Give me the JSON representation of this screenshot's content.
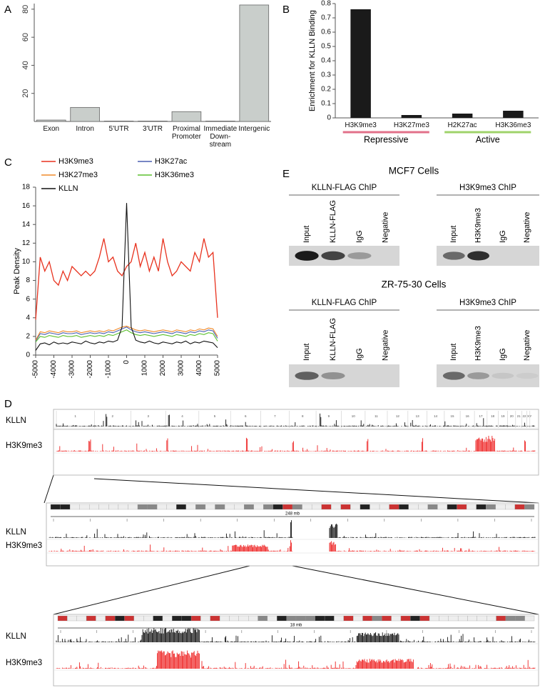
{
  "panel_labels": [
    "A",
    "B",
    "C",
    "D",
    "E"
  ],
  "chart_data": [
    {
      "type": "bar",
      "categories": [
        "Exon",
        "Intron",
        "5'UTR",
        "3'UTR",
        "Proximal Promoter",
        "Immediate Down-stream",
        "Intergenic"
      ],
      "values": [
        1,
        10,
        0.3,
        0.3,
        7,
        0.3,
        83
      ],
      "color": "#c9cecb",
      "ylim": [
        0,
        84
      ],
      "yticks": [
        20,
        40,
        60,
        80
      ]
    },
    {
      "type": "bar",
      "y_label": "Enrichment for KLLN Binding",
      "categories": [
        "H3K9me3",
        "H3K27me3",
        "H2K27ac",
        "H3K36me3"
      ],
      "values": [
        0.76,
        0.02,
        0.03,
        0.05
      ],
      "color": "#1a1a1a",
      "ylim": [
        0,
        0.8
      ],
      "yticks": [
        0,
        0.1,
        0.2,
        0.3,
        0.4,
        0.5,
        0.6,
        0.7,
        0.8
      ],
      "groups": [
        {
          "label": "Repressive",
          "color": "#e2708a"
        },
        {
          "label": "Active",
          "color": "#9fd36a"
        }
      ]
    },
    {
      "type": "line",
      "y_label": "Peak Density",
      "x": [
        -5000,
        -4750,
        -4500,
        -4250,
        -4000,
        -3750,
        -3500,
        -3250,
        -3000,
        -2750,
        -2500,
        -2250,
        -2000,
        -1750,
        -1500,
        -1250,
        -1000,
        -750,
        -500,
        -250,
        0,
        250,
        500,
        750,
        1000,
        1250,
        1500,
        1750,
        2000,
        2250,
        2500,
        2750,
        3000,
        3250,
        3500,
        3750,
        4000,
        4250,
        4500,
        4750,
        5000
      ],
      "xlim": [
        -5000,
        5000
      ],
      "xticks": [
        -5000,
        -4000,
        -3000,
        -2000,
        -1000,
        0,
        1000,
        2000,
        3000,
        4000,
        5000
      ],
      "ylim": [
        0,
        18
      ],
      "yticks": [
        0,
        2,
        4,
        6,
        8,
        10,
        12,
        14,
        16,
        18
      ],
      "series": [
        {
          "name": "H3K9me3",
          "color": "#e8321e",
          "values": [
            3.8,
            10.5,
            9,
            10,
            8,
            7.5,
            9,
            8,
            9.5,
            9,
            8.5,
            9,
            8.5,
            9,
            10.5,
            12.5,
            10,
            10.5,
            9,
            8.5,
            9.5,
            10,
            12,
            9.5,
            11,
            9,
            10.5,
            9,
            12.5,
            10,
            8.5,
            9,
            10,
            9.5,
            9,
            11,
            10,
            12.5,
            10.5,
            11,
            4
          ]
        },
        {
          "name": "H3K27ac",
          "color": "#4a5fb0",
          "values": [
            1.5,
            2.3,
            2.2,
            2.4,
            2.3,
            2.2,
            2.4,
            2.3,
            2.3,
            2.4,
            2.2,
            2.3,
            2.4,
            2.3,
            2.4,
            2.3,
            2.5,
            2.4,
            2.6,
            2.8,
            3,
            2.7,
            2.5,
            2.4,
            2.5,
            2.4,
            2.3,
            2.4,
            2.5,
            2.4,
            2.3,
            2.5,
            2.4,
            2.3,
            2.5,
            2.4,
            2.6,
            2.5,
            2.7,
            2.6,
            1.8
          ]
        },
        {
          "name": "H3K27me3",
          "color": "#f08a2a",
          "values": [
            1.6,
            2.5,
            2.4,
            2.6,
            2.5,
            2.4,
            2.6,
            2.5,
            2.5,
            2.6,
            2.4,
            2.5,
            2.6,
            2.5,
            2.6,
            2.5,
            2.7,
            2.6,
            2.8,
            3,
            3.1,
            2.9,
            2.7,
            2.6,
            2.7,
            2.6,
            2.5,
            2.6,
            2.7,
            2.6,
            2.5,
            2.7,
            2.6,
            2.5,
            2.7,
            2.6,
            2.8,
            2.7,
            2.9,
            2.8,
            2
          ]
        },
        {
          "name": "H3K36me3",
          "color": "#5cc02e",
          "values": [
            1.4,
            2,
            1.9,
            2.1,
            2,
            1.9,
            2.1,
            2,
            2,
            2.1,
            1.9,
            2,
            2.1,
            2,
            2.1,
            2,
            2.2,
            2.1,
            2.3,
            2.5,
            2.7,
            2.4,
            2.2,
            2.1,
            2.2,
            2.1,
            2,
            2.1,
            2.2,
            2.1,
            2,
            2.2,
            2.1,
            2,
            2.2,
            2.1,
            2.3,
            2.2,
            2.4,
            2.3,
            1.5
          ]
        },
        {
          "name": "KLLN",
          "color": "#111111",
          "values": [
            0.5,
            1.2,
            1.3,
            1.1,
            1.4,
            1.2,
            1.3,
            1.2,
            1.4,
            1.3,
            1.2,
            1.5,
            1.3,
            1.2,
            1.4,
            1.3,
            1.5,
            1.4,
            1.6,
            3,
            16.3,
            3,
            1.6,
            1.4,
            1.3,
            1.5,
            1.3,
            1.2,
            1.4,
            1.3,
            1.2,
            1.4,
            1.3,
            1.5,
            1.2,
            1.4,
            1.3,
            1.5,
            1.4,
            1.3,
            0.8
          ]
        }
      ]
    }
  ],
  "gels": [
    {
      "cell_line": "MCF7 Cells",
      "panels": [
        {
          "title": "KLLN-FLAG ChIP",
          "lanes": [
            "Input",
            "KLLN-FLAG",
            "IgG",
            "Negative"
          ]
        },
        {
          "title": "H3K9me3 ChIP",
          "lanes": [
            "Input",
            "H3K9me3",
            "IgG",
            "Negative"
          ]
        }
      ]
    },
    {
      "cell_line": "ZR-75-30 Cells",
      "panels": [
        {
          "title": "KLLN-FLAG ChIP",
          "lanes": [
            "Input",
            "KLLN-FLAG",
            "IgG",
            "Negative"
          ]
        },
        {
          "title": "H3K9me3 ChIP",
          "lanes": [
            "Input",
            "H3K9me3",
            "IgG",
            "Negative"
          ]
        }
      ]
    }
  ],
  "browser": {
    "chromosomes": [
      "1",
      "2",
      "3",
      "4",
      "5",
      "6",
      "7",
      "8",
      "9",
      "10",
      "11",
      "12",
      "13",
      "14",
      "15",
      "16",
      "17",
      "18",
      "19",
      "20",
      "21",
      "22",
      "X",
      "Y"
    ],
    "views": [
      {
        "tracks": [
          "KLLN",
          "H3K9me3"
        ]
      },
      {
        "scale": "248 mb",
        "tracks": [
          "KLLN",
          "H3K9me3"
        ]
      },
      {
        "scale": "18 mb",
        "tracks": [
          "KLLN",
          "H3K9me3"
        ]
      }
    ]
  }
}
